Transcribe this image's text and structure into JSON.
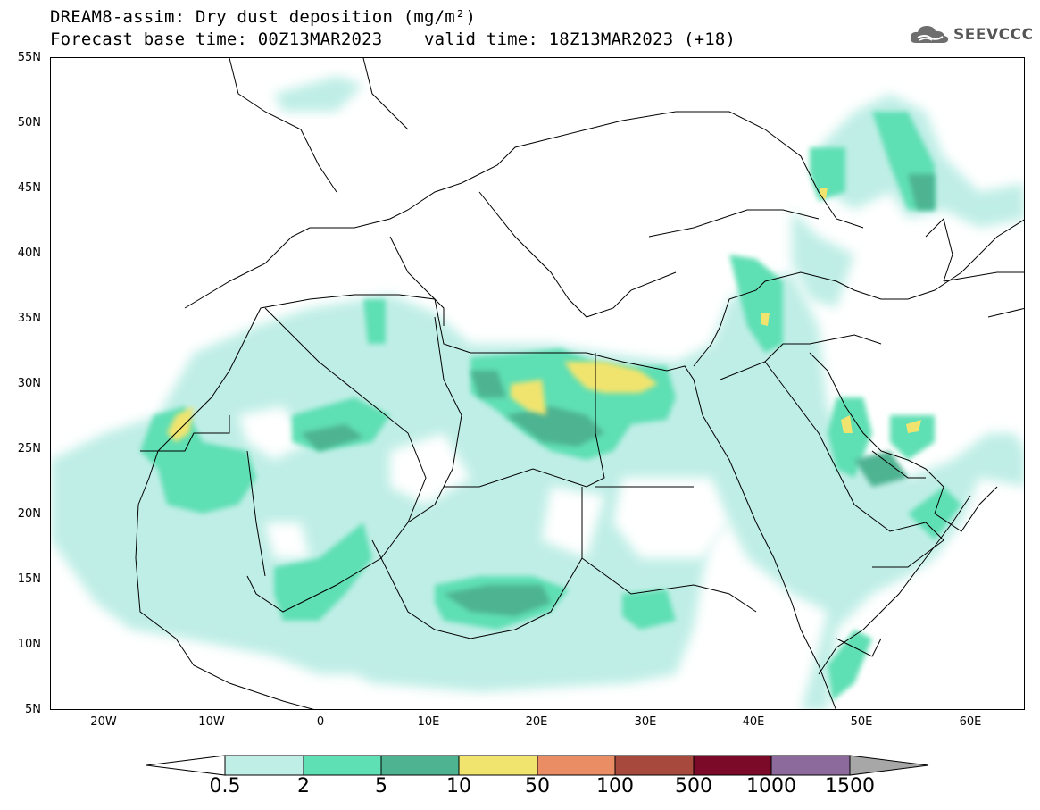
{
  "header": {
    "title_line1": "DREAM8-assim: Dry dust deposition (mg/m²)",
    "title_line2": "Forecast base time: 00Z13MAR2023    valid time: 18Z13MAR2023 (+18)",
    "logo_text": "SEEVCCC",
    "logo_icon": "cloud-icon"
  },
  "map": {
    "projection": "lat-lon",
    "lon_range": [
      -25,
      65
    ],
    "lat_range": [
      5,
      55
    ],
    "lat_labels": [
      "55N",
      "50N",
      "45N",
      "40N",
      "35N",
      "30N",
      "25N",
      "20N",
      "15N",
      "10N",
      "5N"
    ],
    "lon_labels": [
      "20W",
      "10W",
      "0",
      "10E",
      "20E",
      "30E",
      "40E",
      "50E",
      "60E"
    ],
    "field": "dry dust deposition",
    "units": "mg/m²"
  },
  "colorbar": {
    "levels": [
      "0.5",
      "2",
      "5",
      "10",
      "50",
      "100",
      "500",
      "1000",
      "1500"
    ],
    "colors": [
      "#ffffff",
      "#bfeee6",
      "#5edfb4",
      "#4db391",
      "#f1e46e",
      "#ea8d64",
      "#a74a3d",
      "#7a0a27",
      "#8d6a9c",
      "#a7a7a7"
    ]
  }
}
